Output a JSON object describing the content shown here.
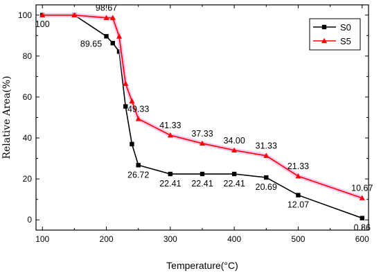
{
  "chart_data": {
    "type": "line",
    "xlabel": "Temperature(°C)",
    "ylabel": "Relative Area(%)",
    "xlim": [
      90,
      610
    ],
    "ylim": [
      -5,
      105
    ],
    "xticks": [
      100,
      200,
      300,
      400,
      500,
      600
    ],
    "yticks": [
      0,
      20,
      40,
      60,
      80,
      100
    ],
    "grid": false,
    "legend_position": "top-right",
    "series": [
      {
        "name": "S0",
        "color": "#000000",
        "marker": "square",
        "x": [
          100,
          150,
          200,
          210,
          220,
          230,
          240,
          250,
          300,
          350,
          400,
          450,
          500,
          600
        ],
        "y": [
          100,
          100,
          89.65,
          86.3,
          82.2,
          55.4,
          37.0,
          26.72,
          22.41,
          22.41,
          22.41,
          20.69,
          12.07,
          0.86
        ]
      },
      {
        "name": "S5",
        "color": "#ff0000",
        "marker": "triangle",
        "x": [
          100,
          150,
          200,
          210,
          220,
          230,
          240,
          250,
          300,
          350,
          400,
          450,
          500,
          600
        ],
        "y": [
          100,
          100,
          98.67,
          98.67,
          89.6,
          66.5,
          58.0,
          49.33,
          41.33,
          37.33,
          34.0,
          31.33,
          21.33,
          10.67
        ]
      }
    ],
    "annotations": [
      {
        "text": "100",
        "x": 100,
        "y": 100,
        "side": "below"
      },
      {
        "text": "98.67",
        "x": 200,
        "y": 98.67,
        "side": "above"
      },
      {
        "text": "89.65",
        "x": 200,
        "y": 89.65,
        "side": "below-left"
      },
      {
        "text": "49.33",
        "x": 250,
        "y": 49.33,
        "side": "above"
      },
      {
        "text": "41.33",
        "x": 300,
        "y": 41.33,
        "side": "above"
      },
      {
        "text": "37.33",
        "x": 350,
        "y": 37.33,
        "side": "above"
      },
      {
        "text": "34.00",
        "x": 400,
        "y": 34.0,
        "side": "above"
      },
      {
        "text": "31.33",
        "x": 450,
        "y": 31.33,
        "side": "above"
      },
      {
        "text": "21.33",
        "x": 500,
        "y": 21.33,
        "side": "above"
      },
      {
        "text": "10.67",
        "x": 600,
        "y": 10.67,
        "side": "above"
      },
      {
        "text": "26.72",
        "x": 250,
        "y": 26.72,
        "side": "below"
      },
      {
        "text": "22.41",
        "x": 300,
        "y": 22.41,
        "side": "below"
      },
      {
        "text": "22.41",
        "x": 350,
        "y": 22.41,
        "side": "below"
      },
      {
        "text": "22.41",
        "x": 400,
        "y": 22.41,
        "side": "below"
      },
      {
        "text": "20.69",
        "x": 450,
        "y": 20.69,
        "side": "below"
      },
      {
        "text": "12.07",
        "x": 500,
        "y": 12.07,
        "side": "below"
      },
      {
        "text": "0.86",
        "x": 600,
        "y": 0.86,
        "side": "below"
      }
    ]
  }
}
